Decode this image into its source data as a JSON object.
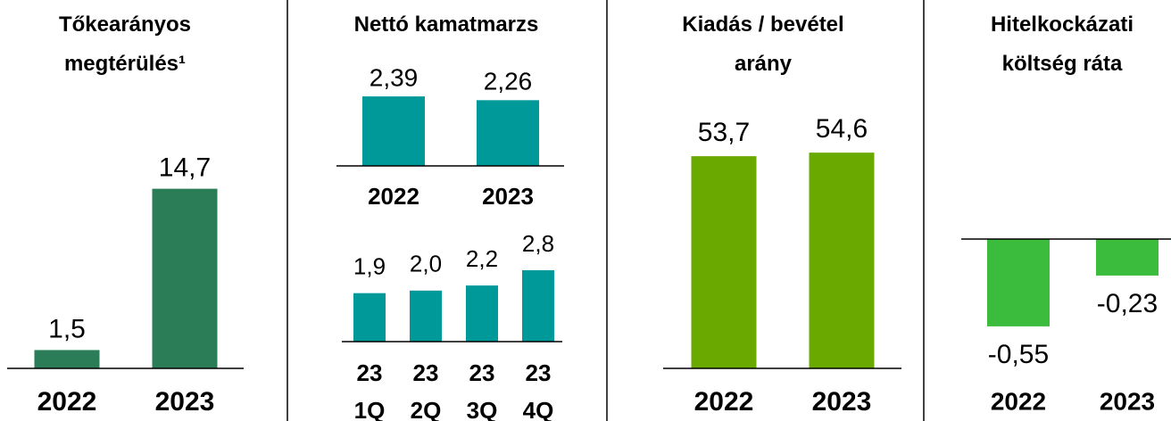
{
  "chart_data": [
    {
      "type": "bar",
      "title": "Tőkearányos megtérülés¹",
      "categories": [
        "2022",
        "2023"
      ],
      "values": [
        1.5,
        14.7
      ],
      "value_labels": [
        "1,5",
        "14,7"
      ],
      "color": "#2a7d56"
    },
    {
      "type": "bar",
      "title": "Nettó kamatmarzs",
      "categories": [
        "2022",
        "2023"
      ],
      "values": [
        2.39,
        2.26
      ],
      "value_labels": [
        "2,39",
        "2,26"
      ],
      "color": "#00999a"
    },
    {
      "type": "bar",
      "categories": [
        "23 1Q",
        "23 2Q",
        "23 3Q",
        "23 4Q"
      ],
      "values": [
        1.9,
        2.0,
        2.2,
        2.8
      ],
      "value_labels": [
        "1,9",
        "2,0",
        "2,2",
        "2,8"
      ],
      "color": "#00999a"
    },
    {
      "type": "bar",
      "title": "Kiadás / bevétel arány",
      "categories": [
        "2022",
        "2023"
      ],
      "values": [
        53.7,
        54.6
      ],
      "value_labels": [
        "53,7",
        "54,6"
      ],
      "color": "#6aaa00"
    },
    {
      "type": "bar",
      "title": "Hitelkockázati költség ráta",
      "categories": [
        "2022",
        "2023"
      ],
      "values": [
        -0.55,
        -0.23
      ],
      "value_labels": [
        "-0,55",
        "-0,23"
      ],
      "color": "#3cbc3c"
    }
  ]
}
